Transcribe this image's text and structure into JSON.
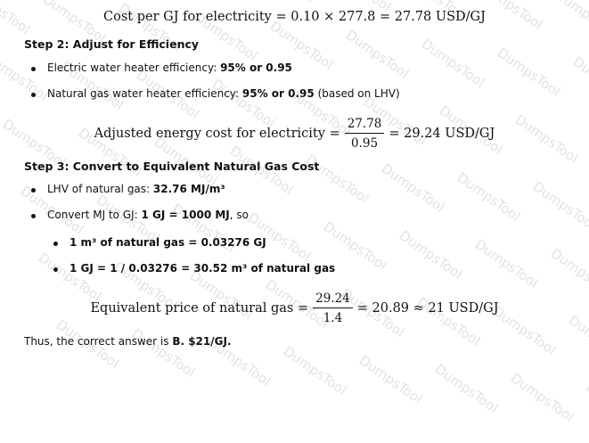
{
  "watermark": "DumpsTool",
  "equations": [
    {
      "lhs": "Cost per GJ for electricity = 0.10 × 277.8 = 27.78 USD/GJ"
    },
    {
      "lhs": "Adjusted energy cost for electricity =",
      "numerator": "27.78",
      "denominator": "0.95",
      "rhs": "= 29.24 USD/GJ"
    },
    {
      "lhs": "Equivalent price of natural gas =",
      "numerator": "29.24",
      "denominator": "1.4",
      "rhs": "= 20.89 ≈ 21 USD/GJ"
    }
  ],
  "steps": [
    {
      "heading": "Step 2: Adjust for Efficiency",
      "bullets": [
        {
          "level": 1,
          "parts": [
            {
              "text": "Electric water heater efficiency: ",
              "bold": false
            },
            {
              "text": "95% or 0.95",
              "bold": true
            }
          ]
        },
        {
          "level": 1,
          "parts": [
            {
              "text": "Natural gas water heater efficiency: ",
              "bold": false
            },
            {
              "text": "95% or 0.95",
              "bold": true
            },
            {
              "text": " (based on LHV)",
              "bold": false
            }
          ]
        }
      ]
    },
    {
      "heading": "Step 3: Convert to Equivalent Natural Gas Cost",
      "bullets": [
        {
          "level": 1,
          "parts": [
            {
              "text": "LHV of natural gas: ",
              "bold": false
            },
            {
              "text": "32.76 MJ/m³",
              "bold": true
            }
          ]
        },
        {
          "level": 1,
          "parts": [
            {
              "text": "Convert MJ to GJ: ",
              "bold": false
            },
            {
              "text": "1 GJ = 1000 MJ",
              "bold": true
            },
            {
              "text": ", so",
              "bold": false
            }
          ]
        },
        {
          "level": 2,
          "parts": [
            {
              "text": "1 m³ of natural gas = 0.03276 GJ",
              "bold": true
            }
          ]
        },
        {
          "level": 2,
          "parts": [
            {
              "text": "1 GJ = 1 / 0.03276 = 30.52 m³ of natural gas",
              "bold": true
            }
          ]
        }
      ]
    }
  ],
  "conclusion": [
    {
      "text": "Thus, the correct answer is ",
      "bold": false
    },
    {
      "text": "B. $21/GJ.",
      "bold": true
    }
  ]
}
